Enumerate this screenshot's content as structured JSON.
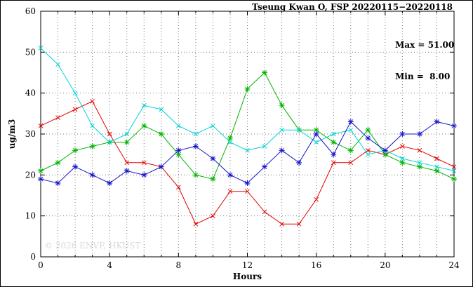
{
  "title": "Tseung Kwan O, FSP 20220115−20220118",
  "annotation": {
    "max_label": "Max = 51.00",
    "min_label": "Min =  8.00"
  },
  "watermark": "© 2026 ENVF, HKUST",
  "chart_data": {
    "type": "line",
    "title": "Tseung Kwan O, FSP 20220115−20220118",
    "xlabel": "Hours",
    "ylabel": "ug/m3",
    "xlim": [
      0,
      24
    ],
    "ylim": [
      0,
      60
    ],
    "xticks": [
      0,
      4,
      8,
      12,
      16,
      20,
      24
    ],
    "yticks": [
      0,
      10,
      20,
      30,
      40,
      50,
      60
    ],
    "grid": true,
    "legend": "none",
    "stats": {
      "max": 51.0,
      "min": 8.0
    },
    "x": [
      0,
      1,
      2,
      3,
      4,
      5,
      6,
      7,
      8,
      9,
      10,
      11,
      12,
      13,
      14,
      15,
      16,
      17,
      18,
      19,
      20,
      21,
      22,
      23,
      24
    ],
    "series": [
      {
        "name": "red",
        "color": "#e60000",
        "marker": "x",
        "values": [
          32,
          34,
          36,
          38,
          30,
          23,
          23,
          22,
          17,
          8,
          10,
          16,
          16,
          11,
          8,
          8,
          14,
          23,
          23,
          26,
          25,
          27,
          26,
          24,
          22
        ]
      },
      {
        "name": "green",
        "color": "#00b400",
        "marker": "asterisk",
        "values": [
          21,
          23,
          26,
          27,
          28,
          28,
          32,
          30,
          25,
          20,
          19,
          29,
          41,
          45,
          37,
          31,
          31,
          28,
          26,
          31,
          25,
          23,
          22,
          21,
          19
        ]
      },
      {
        "name": "cyan",
        "color": "#00d4d4",
        "marker": "x",
        "values": [
          51,
          47,
          40,
          32,
          28,
          30,
          37,
          36,
          32,
          30,
          32,
          28,
          26,
          27,
          31,
          31,
          28,
          30,
          31,
          25,
          26,
          24,
          23,
          22,
          21
        ]
      },
      {
        "name": "blue",
        "color": "#1414cc",
        "marker": "asterisk",
        "values": [
          19,
          18,
          22,
          20,
          18,
          21,
          20,
          22,
          26,
          27,
          24,
          20,
          18,
          22,
          26,
          23,
          30,
          25,
          33,
          29,
          26,
          30,
          30,
          33,
          32
        ]
      }
    ]
  }
}
